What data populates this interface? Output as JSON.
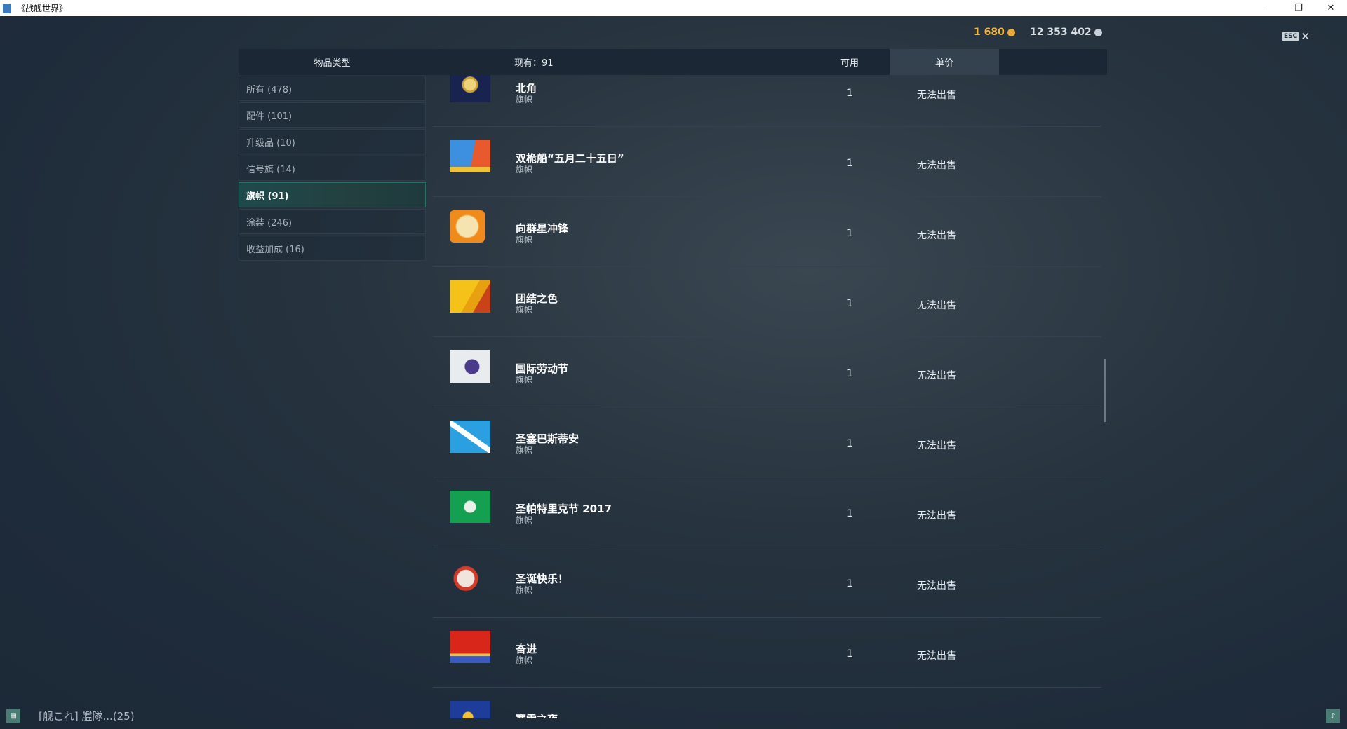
{
  "window": {
    "title": "《战舰世界》",
    "minimize": "–",
    "restore": "❐",
    "close": "✕"
  },
  "currency": {
    "gold": "1 680",
    "gold_color": "#f2b640",
    "credits": "12 353 402",
    "credits_color": "#d7dde3"
  },
  "esc": {
    "key": "ESC",
    "close": "✕"
  },
  "header": {
    "item_type": "物品类型",
    "owned": "现有：91",
    "available": "可用",
    "unit_price": "单价"
  },
  "sidebar": {
    "items": [
      {
        "label": "所有 (478)"
      },
      {
        "label": "配件 (101)"
      },
      {
        "label": "升级品 (10)"
      },
      {
        "label": "信号旗 (14)"
      },
      {
        "label": "旗帜 (91)",
        "active": true
      },
      {
        "label": "涂装 (246)"
      },
      {
        "label": "收益加成 (16)"
      }
    ]
  },
  "rows": [
    {
      "name": "北角",
      "type": "旗帜",
      "available": "1",
      "price": "无法出售",
      "icon": "navy-crest-flag"
    },
    {
      "name": "双桅船“五月二十五日”",
      "type": "旗帜",
      "available": "1",
      "price": "无法出售",
      "icon": "blue-orange-ship-flag"
    },
    {
      "name": "向群星冲锋",
      "type": "旗帜",
      "available": "1",
      "price": "无法出售",
      "icon": "orange-emblem-flag"
    },
    {
      "name": "团结之色",
      "type": "旗帜",
      "available": "1",
      "price": "无法出售",
      "icon": "yellow-red-flag"
    },
    {
      "name": "国际劳动节",
      "type": "旗帜",
      "available": "1",
      "price": "无法出售",
      "icon": "white-fist-flag"
    },
    {
      "name": "圣塞巴斯蒂安",
      "type": "旗帜",
      "available": "1",
      "price": "无法出售",
      "icon": "blue-saltire-flag"
    },
    {
      "name": "圣帕特里克节 2017",
      "type": "旗帜",
      "available": "1",
      "price": "无法出售",
      "icon": "green-shamrock-flag"
    },
    {
      "name": "圣诞快乐！",
      "type": "旗帜",
      "available": "1",
      "price": "无法出售",
      "icon": "santa-flag"
    },
    {
      "name": "奋进",
      "type": "旗帜",
      "available": "1",
      "price": "无法出售",
      "icon": "red-gold-flag"
    },
    {
      "name": "寒雪之夜",
      "type": "",
      "available": "",
      "price": "",
      "icon": "blue-gold-flag"
    }
  ],
  "bottom": {
    "clan": "[舰これ] 艦隊...(25)",
    "chat_icon": "chat-icon",
    "bell_icon": "bell-icon"
  }
}
